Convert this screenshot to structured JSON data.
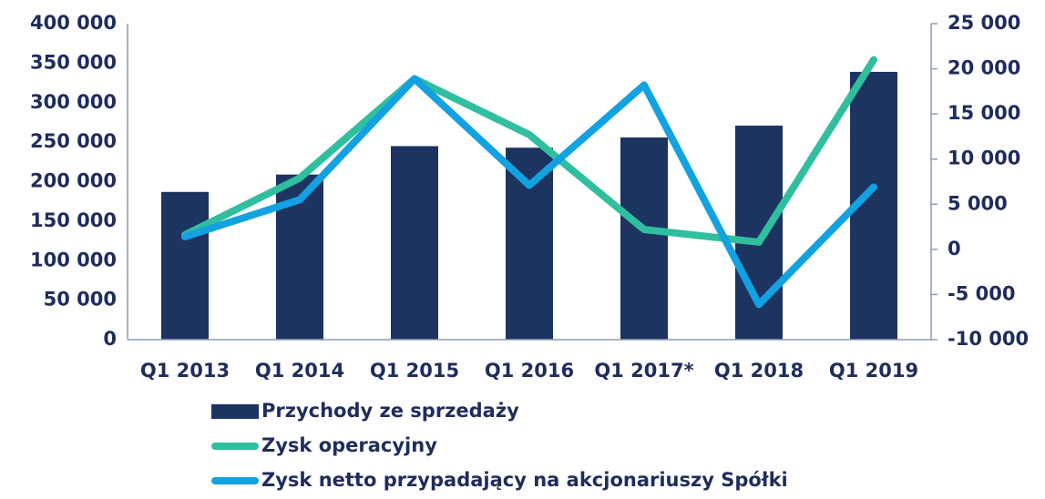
{
  "chart_data": {
    "type": "bar-line",
    "categories": [
      "Q1 2013",
      "Q1 2014",
      "Q1 2015",
      "Q1 2016",
      "Q1 2017*",
      "Q1 2018",
      "Q1 2019"
    ],
    "series": [
      {
        "name": "Przychody ze sprzedaży",
        "type": "bar",
        "color": "#1d3461",
        "values": [
          187000,
          209000,
          245000,
          243000,
          256000,
          271000,
          339000
        ]
      },
      {
        "name": "Zysk operacyjny",
        "type": "line",
        "axis": "y2",
        "color": "#2fbf9f",
        "values": [
          1600,
          7900,
          18900,
          12700,
          2200,
          800,
          21000
        ]
      },
      {
        "name": "Zysk netto przypadający na akcjonariuszy Spółki",
        "type": "line",
        "axis": "y2",
        "color": "#12a2e2",
        "values": [
          1400,
          5500,
          18900,
          7100,
          18200,
          -6100,
          6900
        ]
      }
    ],
    "ylim": [
      0,
      400000
    ],
    "yticks": [
      0,
      {
        "value": 50000,
        "label": "50 000"
      },
      {
        "value": 100000,
        "label": "100 000"
      },
      {
        "value": 150000,
        "label": "150 000"
      },
      {
        "value": 200000,
        "label": "200 000"
      },
      {
        "value": 250000,
        "label": "250 000"
      },
      {
        "value": 300000,
        "label": "300 000"
      },
      {
        "value": 350000,
        "label": "350 000"
      },
      {
        "value": 400000,
        "label": "400 000"
      }
    ],
    "y2lim": [
      -10000,
      25000
    ],
    "y2ticks": [
      {
        "value": -10000,
        "label": "-10 000"
      },
      {
        "value": -5000,
        "label": "-5 000"
      },
      0,
      {
        "value": 5000,
        "label": "5 000"
      },
      {
        "value": 10000,
        "label": "10 000"
      },
      {
        "value": 15000,
        "label": "15 000"
      },
      {
        "value": 20000,
        "label": "20 000"
      },
      {
        "value": 25000,
        "label": "25 000"
      }
    ]
  }
}
